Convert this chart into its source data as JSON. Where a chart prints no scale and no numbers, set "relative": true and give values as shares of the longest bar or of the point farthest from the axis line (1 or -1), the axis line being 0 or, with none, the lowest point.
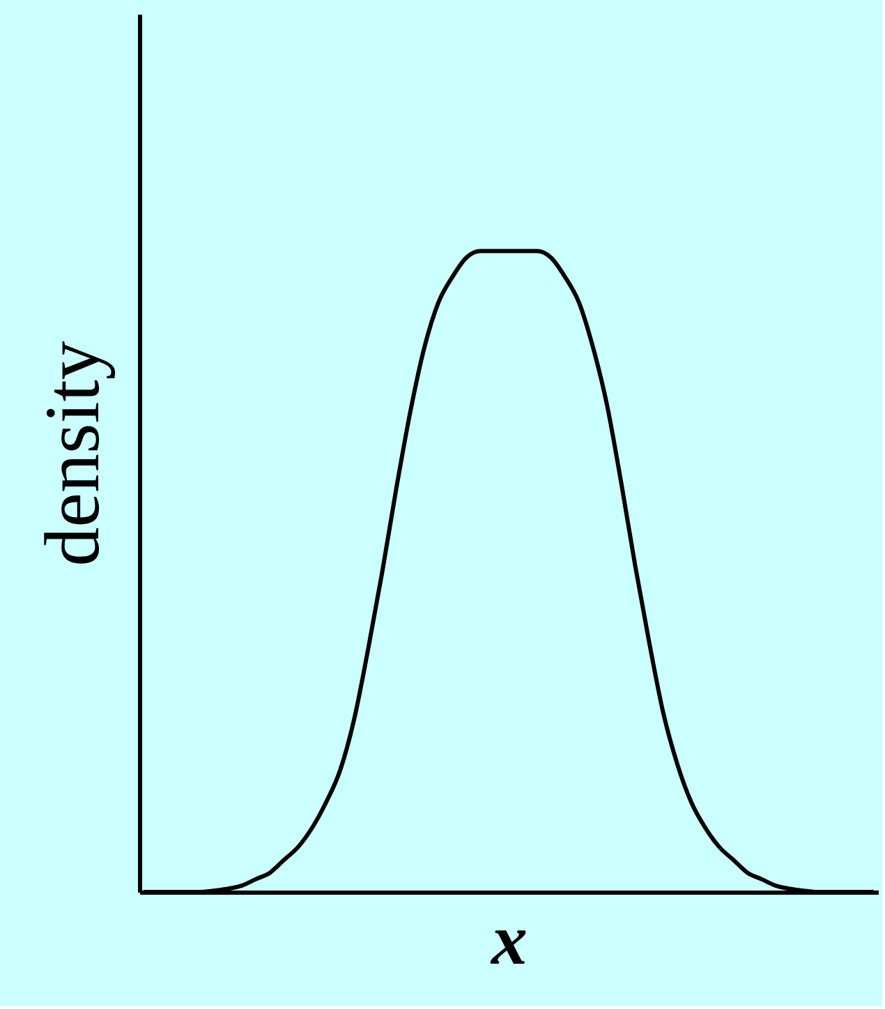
{
  "chart_data": {
    "type": "line",
    "relative": true,
    "xlabel": "x",
    "ylabel": "density",
    "grid": false,
    "tick_labels": false,
    "marker": "none",
    "line_style": "solid",
    "categories": [
      null,
      null,
      null,
      null,
      null,
      null,
      null,
      null,
      null,
      null,
      null,
      null,
      null,
      null,
      null,
      null,
      null,
      null,
      null,
      null,
      null,
      null,
      null,
      null,
      null,
      null,
      null,
      null,
      null,
      null,
      null,
      null,
      null,
      null,
      null,
      null,
      null,
      null,
      null,
      null,
      null,
      null,
      null,
      null,
      null,
      null,
      null,
      null,
      null,
      null,
      null,
      null,
      null
    ],
    "series": [
      {
        "color": "#000000",
        "values": [
          0,
          0,
          0,
          0,
          0,
          0.002,
          0.005,
          0.01,
          0.02,
          0.03,
          0.05,
          0.07,
          0.1,
          0.14,
          0.19,
          0.27,
          0.38,
          0.5,
          0.63,
          0.75,
          0.85,
          0.92,
          0.96,
          0.99,
          1,
          1,
          1,
          1,
          1,
          0.99,
          0.96,
          0.92,
          0.85,
          0.76,
          0.64,
          0.51,
          0.39,
          0.28,
          0.2,
          0.14,
          0.1,
          0.07,
          0.05,
          0.03,
          0.02,
          0.01,
          0.005,
          0.002,
          0,
          0,
          0,
          0,
          0
        ]
      }
    ]
  }
}
